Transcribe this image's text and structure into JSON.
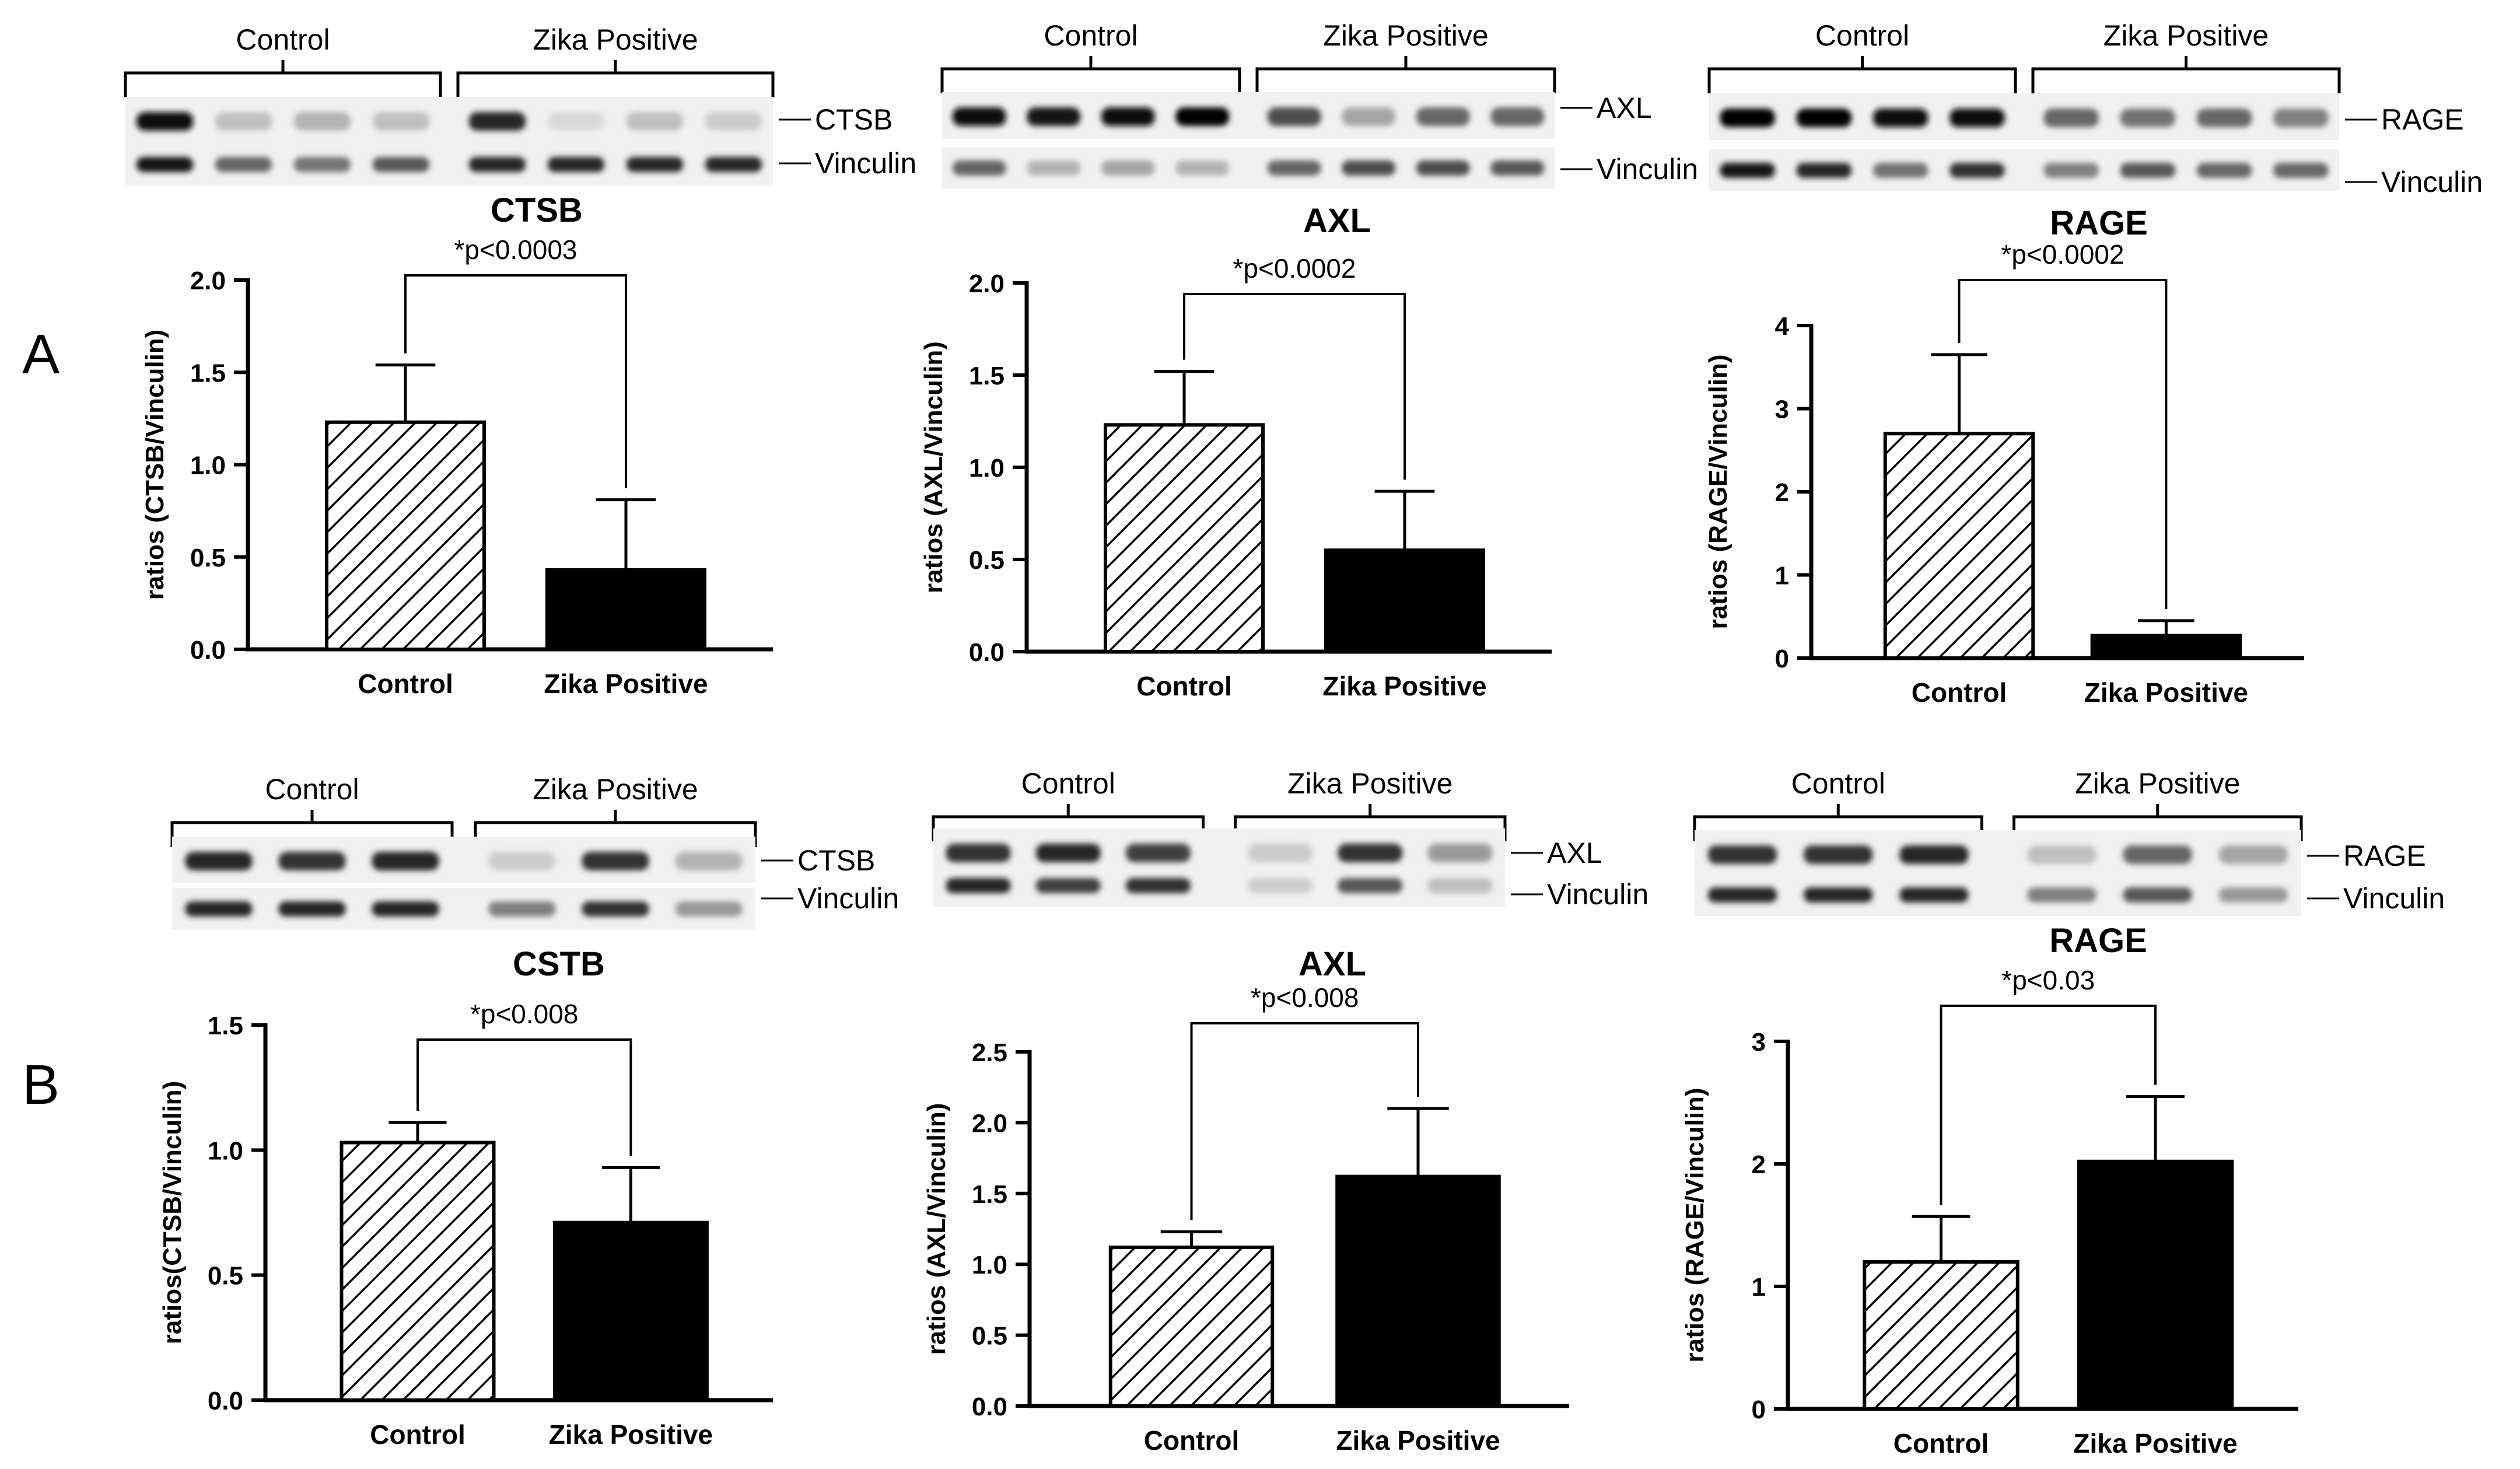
{
  "panel_labels": [
    "A",
    "B"
  ],
  "blot_row_labels": {
    "control": "Control",
    "zika": "Zika Positive",
    "vinculin": "Vinculin"
  },
  "blots": [
    {
      "target": "CTSB",
      "lanes_per_group": 4
    },
    {
      "target": "AXL",
      "lanes_per_group": 4
    },
    {
      "target": "RAGE",
      "lanes_per_group": 4
    },
    {
      "target": "CTSB",
      "lanes_per_group": 3
    },
    {
      "target": "AXL",
      "lanes_per_group": 3
    },
    {
      "target": "RAGE",
      "lanes_per_group": 3
    }
  ],
  "colors": {
    "control_fill": "#ffffff",
    "zika_fill": "#000000",
    "hatch": "#000000"
  },
  "chart_data": [
    {
      "type": "bar",
      "panel": "A",
      "title": "CTSB",
      "ylabel": "ratios  (CTSB/Vinculin)",
      "categories": [
        "Control",
        "Zika Positive"
      ],
      "values": [
        1.23,
        0.43
      ],
      "errors": [
        0.31,
        0.38
      ],
      "ylim": [
        0,
        2.0
      ],
      "yticks": [
        "0.0",
        "0.5",
        "1.0",
        "1.5",
        "2.0"
      ],
      "significance": "*p<0.0003"
    },
    {
      "type": "bar",
      "panel": "A",
      "title": "AXL",
      "ylabel": "ratios (AXL/Vinculin)",
      "categories": [
        "Control",
        "Zika Positive"
      ],
      "values": [
        1.23,
        0.55
      ],
      "errors": [
        0.29,
        0.32
      ],
      "ylim": [
        0,
        2.0
      ],
      "yticks": [
        "0.0",
        "0.5",
        "1.0",
        "1.5",
        "2.0"
      ],
      "significance": "*p<0.0002"
    },
    {
      "type": "bar",
      "panel": "A",
      "title": "RAGE",
      "ylabel": "ratios (RAGE/Vinculin)",
      "categories": [
        "Control",
        "Zika Positive"
      ],
      "values": [
        2.7,
        0.27
      ],
      "errors": [
        0.95,
        0.18
      ],
      "ylim": [
        0,
        4.0
      ],
      "yticks": [
        "0",
        "1",
        "2",
        "3",
        "4"
      ],
      "significance": "*p<0.0002"
    },
    {
      "type": "bar",
      "panel": "B",
      "title": "CSTB",
      "ylabel": "ratios(CTSB/Vinculin)",
      "categories": [
        "Control",
        "Zika Positive"
      ],
      "values": [
        1.03,
        0.71
      ],
      "errors": [
        0.08,
        0.22
      ],
      "ylim": [
        0,
        1.5
      ],
      "yticks": [
        "0.0",
        "0.5",
        "1.0",
        "1.5"
      ],
      "significance": "*p<0.008"
    },
    {
      "type": "bar",
      "panel": "B",
      "title": "AXL",
      "ylabel": "ratios (AXL/Vinculin)",
      "categories": [
        "Control",
        "Zika Positive"
      ],
      "values": [
        1.12,
        1.62
      ],
      "errors": [
        0.11,
        0.48
      ],
      "ylim": [
        0,
        2.5
      ],
      "yticks": [
        "0.0",
        "0.5",
        "1.0",
        "1.5",
        "2.0",
        "2.5"
      ],
      "significance": "*p<0.008"
    },
    {
      "type": "bar",
      "panel": "B",
      "title": "RAGE",
      "ylabel": "ratios (RAGE/Vinculin)",
      "categories": [
        "Control",
        "Zika Positive"
      ],
      "values": [
        1.2,
        2.02
      ],
      "errors": [
        0.37,
        0.53
      ],
      "ylim": [
        0,
        3.0
      ],
      "yticks": [
        "0",
        "1",
        "2",
        "3"
      ],
      "significance": "*p<0.03"
    }
  ]
}
